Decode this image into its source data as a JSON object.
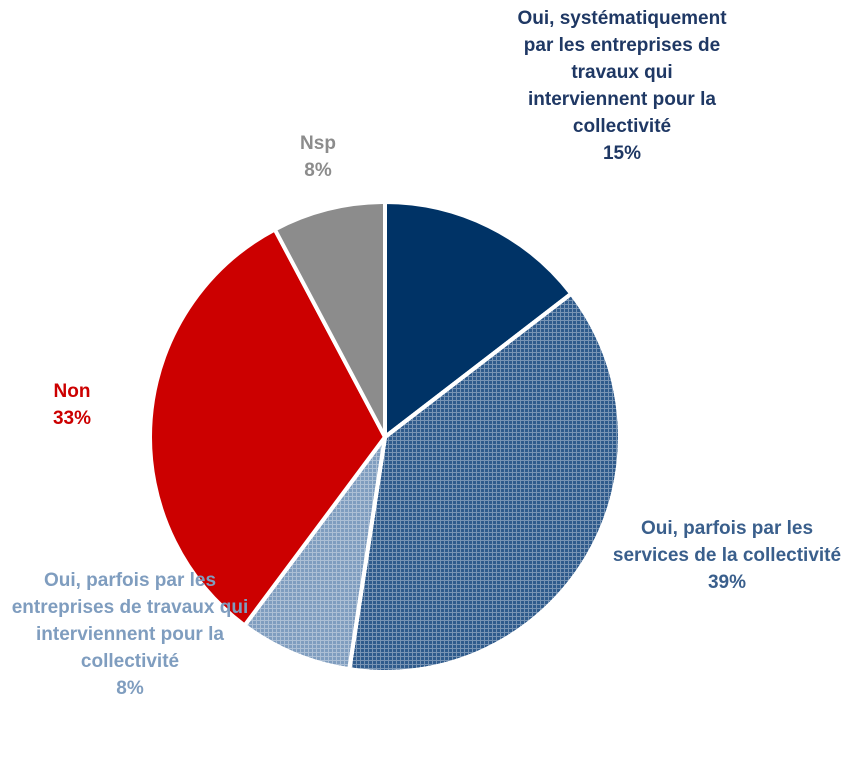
{
  "chart_data": {
    "type": "pie",
    "categories": [
      "Oui, systématiquement par les entreprises de travaux qui interviennent pour la collectivité",
      "Oui, parfois par les services de la collectivité",
      "Oui, parfois par les entreprises de travaux qui interviennent pour la collectivité",
      "Non",
      "Nsp"
    ],
    "values": [
      15,
      39,
      8,
      33,
      8
    ],
    "value_labels": [
      "15%",
      "39%",
      "8%",
      "33%",
      "8%"
    ],
    "colors": [
      "#003366",
      "#2f5b8c",
      "#7f9dbf",
      "#cc0000",
      "#8c8c8c"
    ],
    "hatch": [
      false,
      true,
      true,
      false,
      false
    ]
  }
}
